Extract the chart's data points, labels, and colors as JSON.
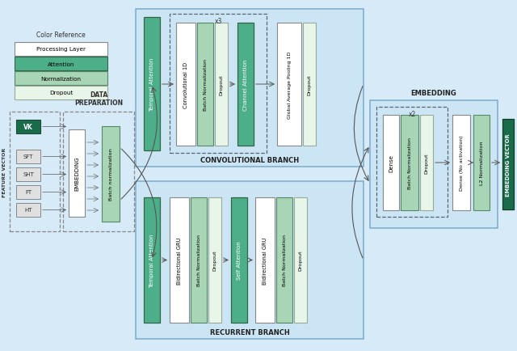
{
  "bg_color": "#d6eaf8",
  "colors": {
    "attention": "#4caf8a",
    "normalization": "#a8d5b5",
    "dropout": "#e8f5e9",
    "processing": "#ffffff",
    "border": "#888888",
    "dark_green": "#1a6b4a",
    "section_bg": "#cce5f5"
  },
  "feature_labels": [
    "VK",
    "HT",
    "FT",
    "SHT",
    "SFT"
  ],
  "legend_items": [
    {
      "label": "Processing Layer",
      "color": "#ffffff"
    },
    {
      "label": "Attention",
      "color": "#4caf8a"
    },
    {
      "label": "Normalization",
      "color": "#a8d5b5"
    },
    {
      "label": "Dropout",
      "color": "#e8f5e9"
    }
  ]
}
